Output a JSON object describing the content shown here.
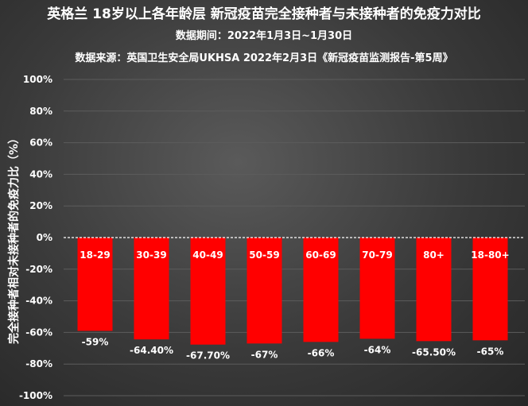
{
  "title": "英格兰 18岁以上各年龄层 新冠疫苗完全接种者与未接种者的免疫力对比",
  "subtitle_period": "数据期间：2022年1月3日~1月30日",
  "subtitle_source": "数据来源：英国卫生安全局UKHSA 2022年2月3日《新冠疫苗监测报告-第5周》",
  "colors": {
    "bar": "#ff0000",
    "zero_line": "#ffffff",
    "grid": "#5c5c5c"
  },
  "chart_data": {
    "type": "bar",
    "title": "英格兰 18岁以上各年龄层 新冠疫苗完全接种者与未接种者的免疫力对比",
    "xlabel": "",
    "ylabel": "完全接种者相对未接种者的免疫力比（%）",
    "ylim": [
      -100,
      100
    ],
    "yticks": [
      "100%",
      "80%",
      "60%",
      "40%",
      "20%",
      "0%",
      "-20%",
      "-40%",
      "-60%",
      "-80%",
      "-100%"
    ],
    "ytick_values": [
      100,
      80,
      60,
      40,
      20,
      0,
      -20,
      -40,
      -60,
      -80,
      -100
    ],
    "grid": true,
    "categories": [
      "18-29",
      "30-39",
      "40-49",
      "50-59",
      "60-69",
      "70-79",
      "80+",
      "18-80+"
    ],
    "values": [
      -59,
      -64.4,
      -67.7,
      -67,
      -66,
      -64,
      -65.5,
      -65
    ],
    "data_labels": [
      "-59%",
      "-64.40%",
      "-67.70%",
      "-67%",
      "-66%",
      "-64%",
      "-65.50%",
      "-65%"
    ]
  }
}
